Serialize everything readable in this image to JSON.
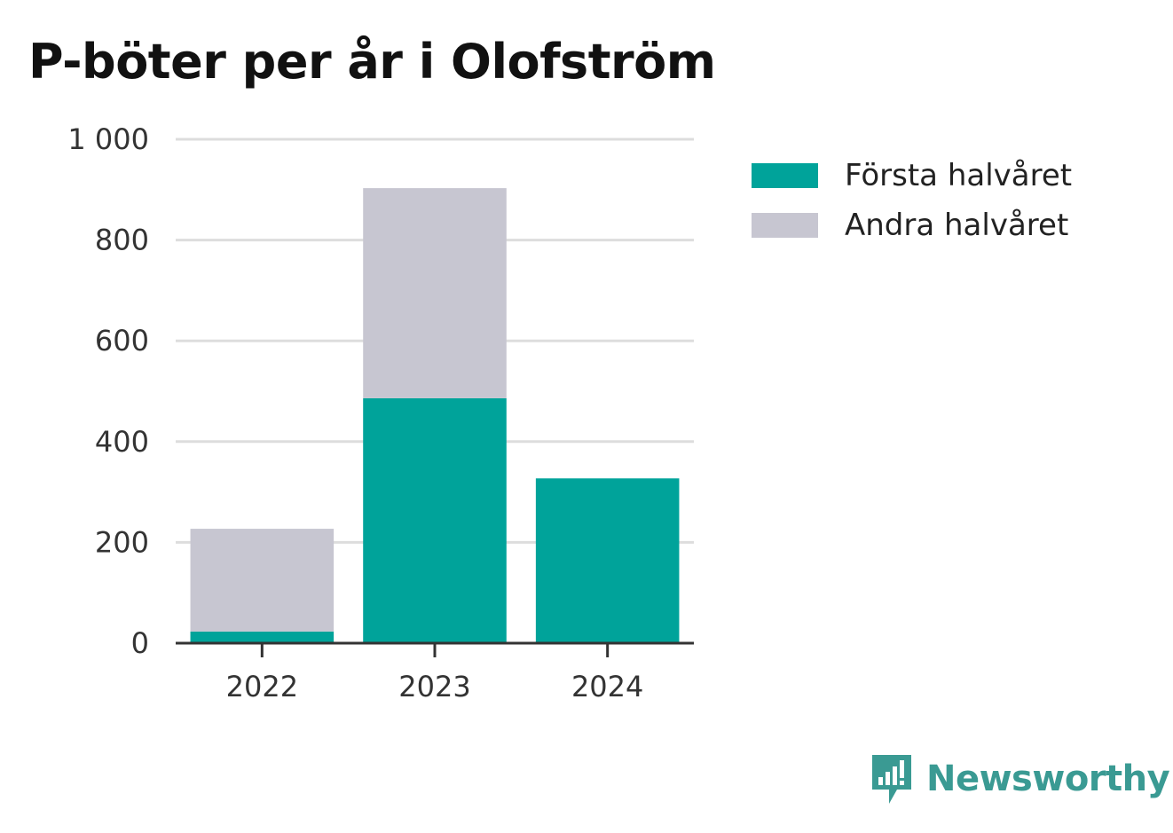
{
  "chart_data": {
    "type": "bar",
    "stacked": true,
    "title": "P-böter per år i Olofström",
    "categories": [
      "2022",
      "2023",
      "2024"
    ],
    "series": [
      {
        "name": "Första halvåret",
        "values": [
          23,
          486,
          327
        ],
        "color": "#00a39a"
      },
      {
        "name": "Andra halvåret",
        "values": [
          204,
          417,
          0
        ],
        "color": "#c7c6d1"
      }
    ],
    "yticks": [
      0,
      200,
      400,
      600,
      800,
      1000
    ],
    "ytick_labels": [
      "0",
      "200",
      "400",
      "600",
      "800",
      "1 000"
    ],
    "ylim": [
      0,
      1000
    ],
    "grid": true,
    "legend_position": "right"
  },
  "brand": {
    "name": "Newsworthy",
    "icon": "newsworthy-logo-icon",
    "color": "#3a9a93"
  }
}
